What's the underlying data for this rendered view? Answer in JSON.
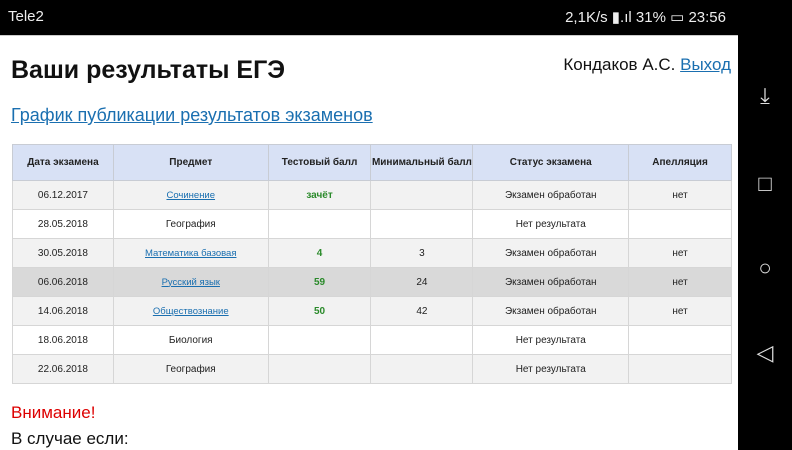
{
  "status_bar": {
    "carrier": "Tele2",
    "speed": "2,1K/s",
    "battery": "31%",
    "time": "23:56"
  },
  "header": {
    "title": "Ваши результаты ЕГЭ",
    "user": "Кондаков А.С.",
    "logout": "Выход"
  },
  "schedule_link": "График публикации результатов экзаменов",
  "table": {
    "columns": [
      "Дата экзамена",
      "Предмет",
      "Тестовый балл",
      "Минимальный балл",
      "Статус экзамена",
      "Апелляция"
    ],
    "rows": [
      {
        "date": "06.12.2017",
        "subject": "Сочинение",
        "link": true,
        "score": "зачёт",
        "min": "",
        "status": "Экзамен обработан",
        "appeal": "нет"
      },
      {
        "date": "28.05.2018",
        "subject": "География",
        "link": false,
        "score": "",
        "min": "",
        "status": "Нет результата",
        "appeal": ""
      },
      {
        "date": "30.05.2018",
        "subject": "Математика базовая",
        "link": true,
        "score": "4",
        "min": "3",
        "status": "Экзамен обработан",
        "appeal": "нет"
      },
      {
        "date": "06.06.2018",
        "subject": "Русский язык",
        "link": true,
        "score": "59",
        "min": "24",
        "status": "Экзамен обработан",
        "appeal": "нет"
      },
      {
        "date": "14.06.2018",
        "subject": "Обществознание",
        "link": true,
        "score": "50",
        "min": "42",
        "status": "Экзамен обработан",
        "appeal": "нет"
      },
      {
        "date": "18.06.2018",
        "subject": "Биология",
        "link": false,
        "score": "",
        "min": "",
        "status": "Нет результата",
        "appeal": ""
      },
      {
        "date": "22.06.2018",
        "subject": "География",
        "link": false,
        "score": "",
        "min": "",
        "status": "Нет результата",
        "appeal": ""
      }
    ]
  },
  "warning": "Внимание!",
  "case_text": "В случае если:"
}
